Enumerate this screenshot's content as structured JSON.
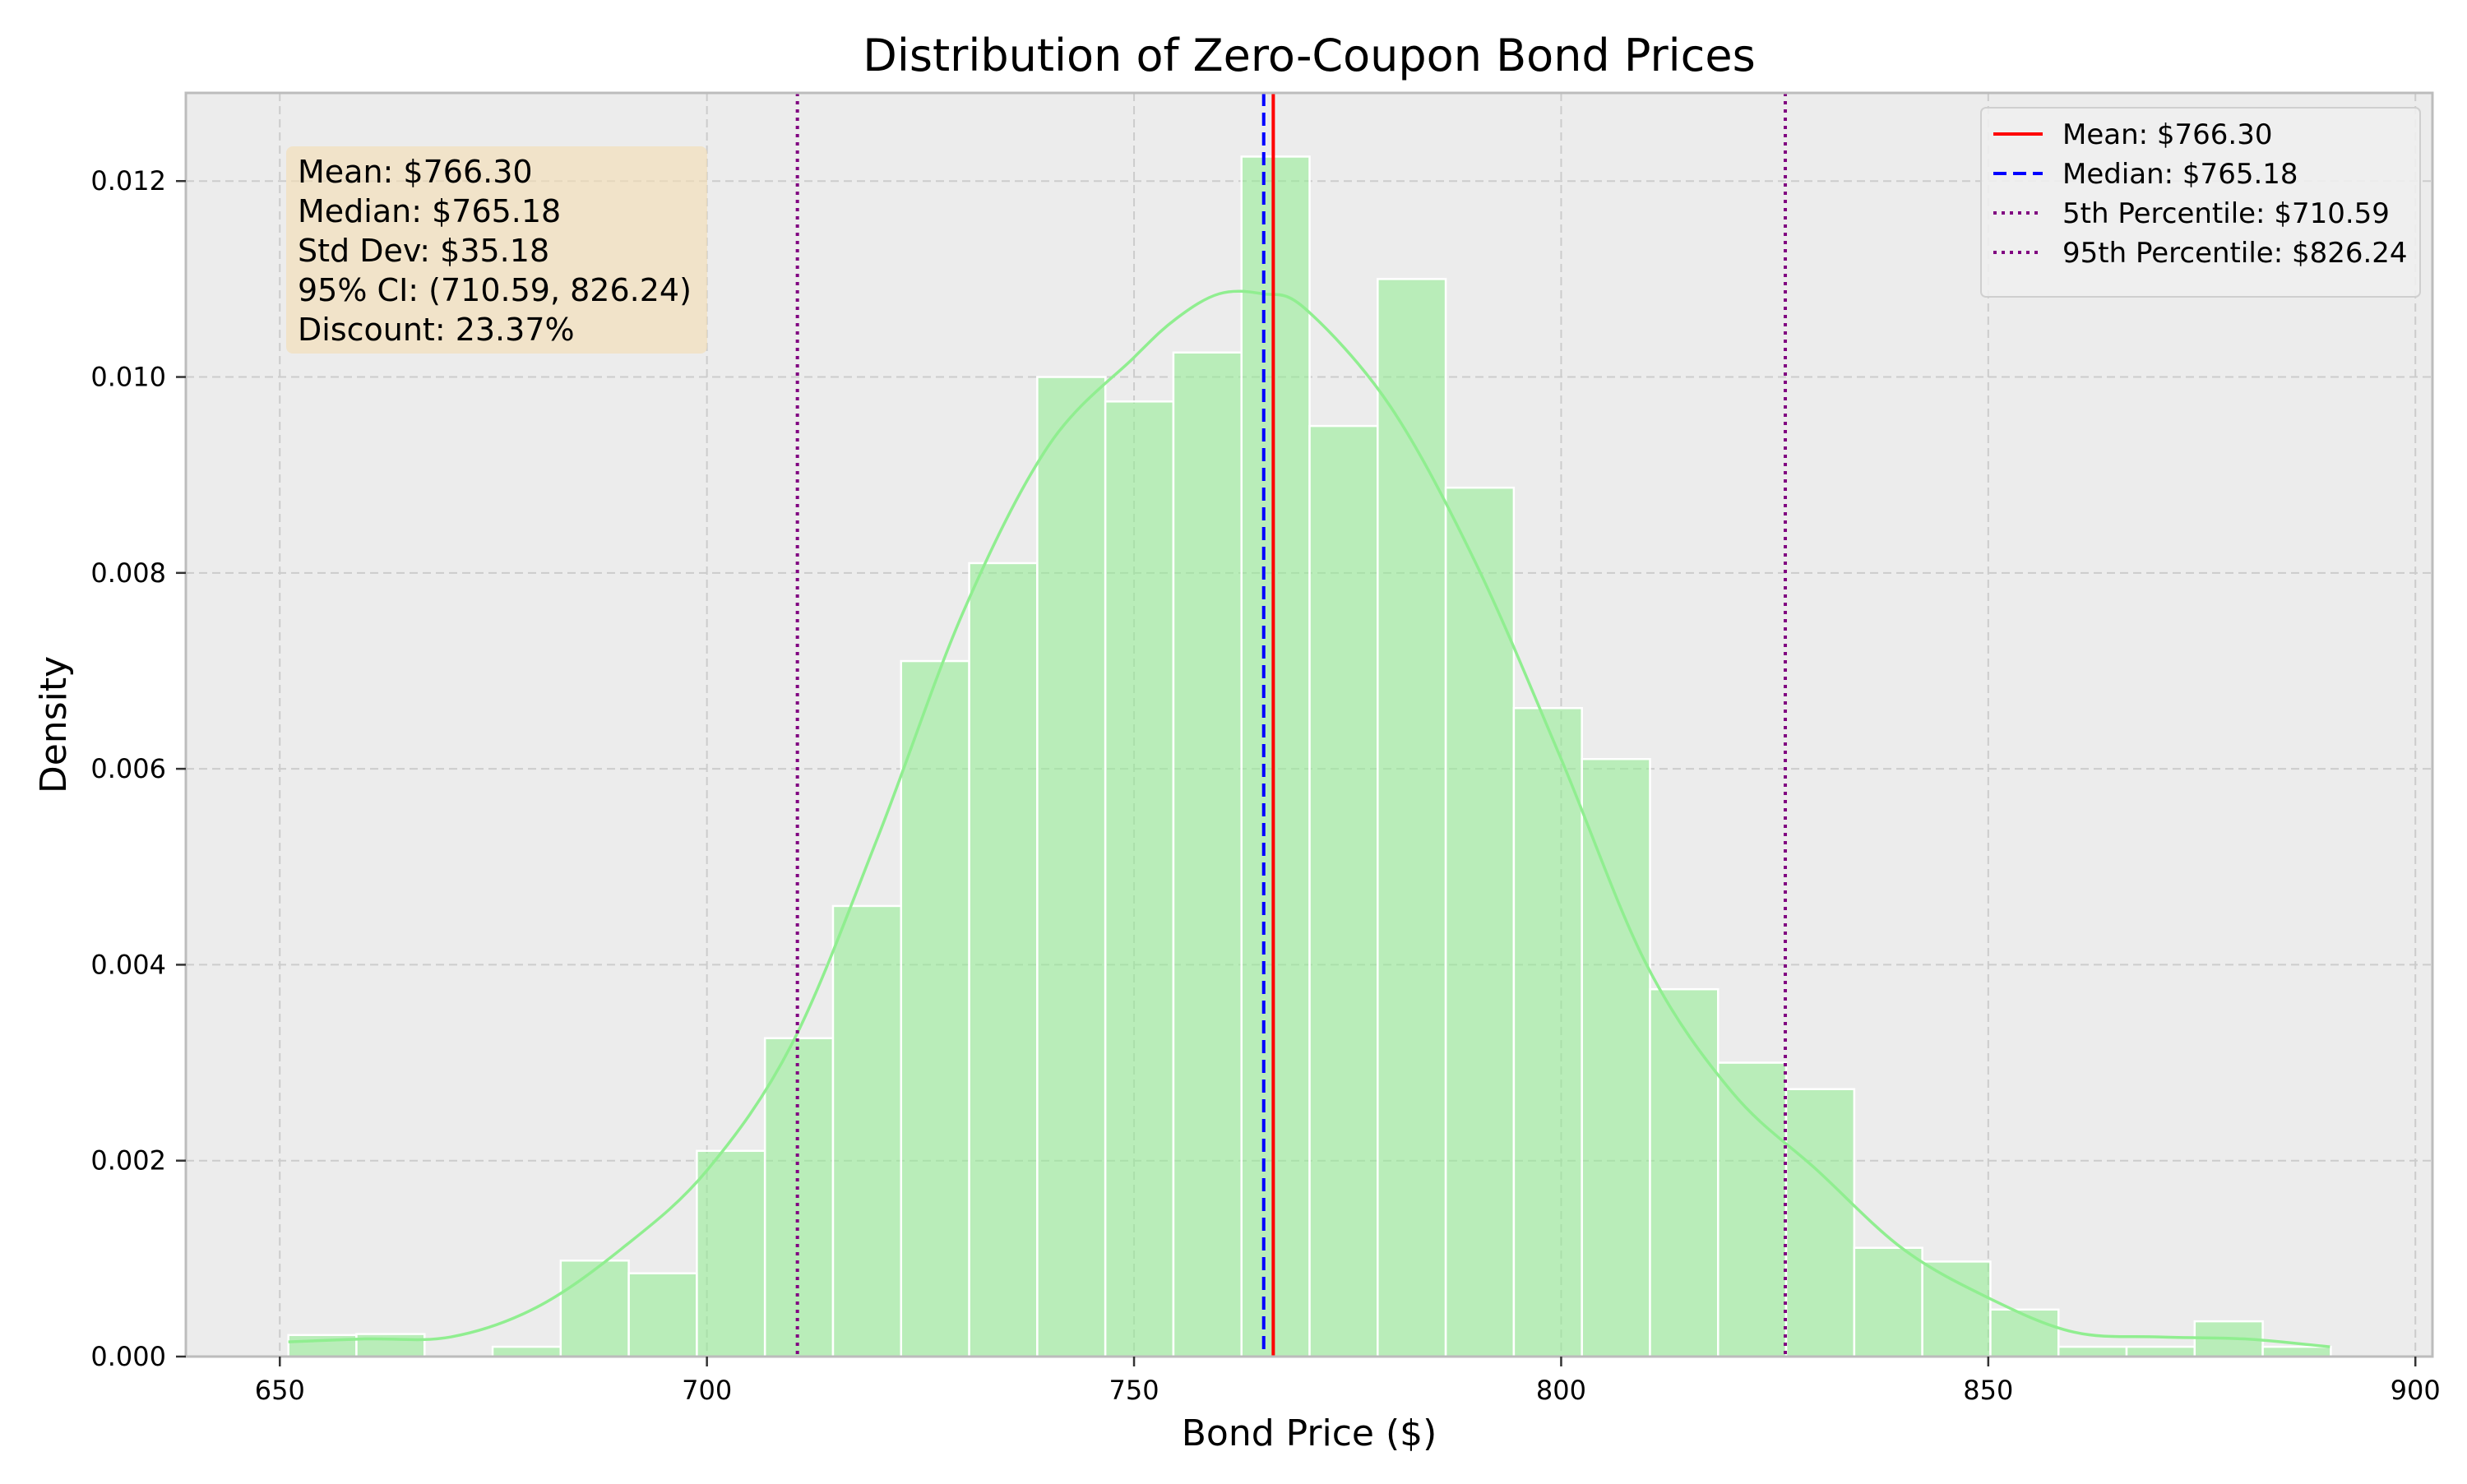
{
  "chart_data": {
    "type": "bar",
    "title": "Distribution of Zero-Coupon Bond Prices",
    "xlabel": "Bond Price ($)",
    "ylabel": "Density",
    "xlim": [
      639,
      902
    ],
    "ylim": [
      0,
      0.0129
    ],
    "xticks": [
      650,
      700,
      750,
      800,
      850,
      900
    ],
    "yticks": [
      0.0,
      0.002,
      0.004,
      0.006,
      0.008,
      0.01,
      0.012
    ],
    "ytick_labels": [
      "0.000",
      "0.002",
      "0.004",
      "0.006",
      "0.008",
      "0.010",
      "0.012"
    ],
    "grid": true,
    "legend_position": "top-right",
    "histogram": {
      "color": "#90EE90",
      "bin_start": 651.0,
      "bin_width": 7.97,
      "densities": [
        0.00022,
        0.00023,
        0.0,
        0.0001,
        0.00098,
        0.00085,
        0.0021,
        0.00325,
        0.0046,
        0.0071,
        0.0081,
        0.01,
        0.00975,
        0.01025,
        0.01225,
        0.0095,
        0.011,
        0.00887,
        0.00662,
        0.0061,
        0.00375,
        0.003,
        0.00273,
        0.00111,
        0.00097,
        0.00048,
        0.0001,
        0.0001,
        0.00036,
        0.0001
      ]
    },
    "kde": {
      "color": "#90EE90",
      "x": [
        651,
        660,
        670,
        680,
        690,
        700,
        710,
        720,
        730,
        740,
        750,
        755,
        760,
        765,
        770,
        780,
        790,
        800,
        810,
        820,
        830,
        840,
        850,
        860,
        870,
        880,
        890
      ],
      "y": [
        0.00015,
        0.00018,
        0.0002,
        0.0005,
        0.0011,
        0.0019,
        0.0032,
        0.0053,
        0.0076,
        0.0093,
        0.0102,
        0.0106,
        0.01085,
        0.01085,
        0.0107,
        0.0097,
        0.0081,
        0.0061,
        0.004,
        0.0027,
        0.0019,
        0.0011,
        0.0006,
        0.00025,
        0.0002,
        0.00018,
        0.0001
      ]
    },
    "reference_lines": [
      {
        "label": "Mean: $766.30",
        "value": 766.3,
        "color": "#ff0000",
        "style": "solid"
      },
      {
        "label": "Median: $765.18",
        "value": 765.18,
        "color": "#0000ff",
        "style": "dashed"
      },
      {
        "label": "5th Percentile: $710.59",
        "value": 710.59,
        "color": "#800080",
        "style": "dotted"
      },
      {
        "label": "95th Percentile: $826.24",
        "value": 826.24,
        "color": "#800080",
        "style": "dotted"
      }
    ],
    "stats_box": {
      "background": "#f5deb3",
      "lines": [
        "Mean: $766.30",
        "Median: $765.18",
        "Std Dev: $35.18",
        "95% CI: (710.59, 826.24)",
        "Discount: 23.37%"
      ]
    },
    "colors": {
      "plot_background": "#ececec",
      "grid": "#cccccc",
      "spine": "#bcbcbc"
    }
  }
}
